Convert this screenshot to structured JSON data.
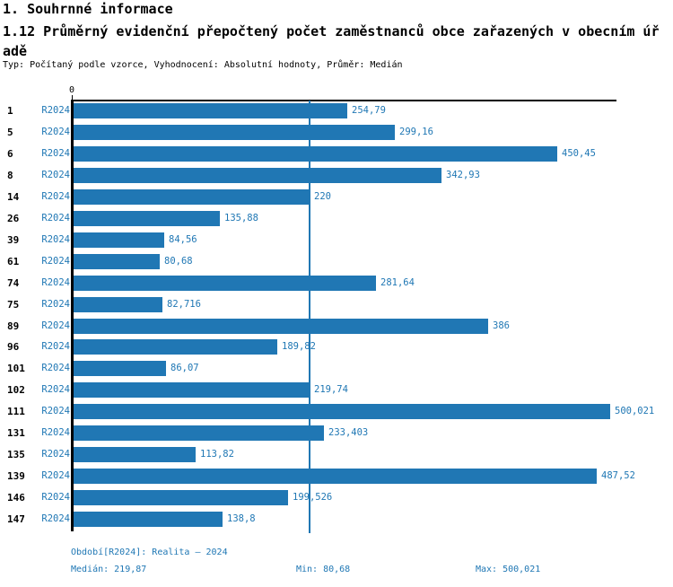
{
  "header": {
    "title": "1. Souhrnné informace",
    "subtitle": "1.12 Průměrný evidenční přepočtený počet zaměstnanců obce zařazených v obecním úřadě",
    "meta": "Typ: Počítaný podle vzorce, Vyhodnocení: Absolutní hodnoty, Průměr: Medián"
  },
  "chart_data": {
    "type": "bar",
    "orientation": "horizontal",
    "title": "1.12 Průměrný evidenční přepočtený počet zaměstnanců obce zařazených v obecním úřadě",
    "series_label": "R2024",
    "categories": [
      "1",
      "5",
      "6",
      "8",
      "14",
      "26",
      "39",
      "61",
      "74",
      "75",
      "89",
      "96",
      "101",
      "102",
      "111",
      "131",
      "135",
      "139",
      "146",
      "147"
    ],
    "values": [
      254.79,
      299.16,
      450.45,
      342.93,
      220,
      135.88,
      84.56,
      80.68,
      281.64,
      82.716,
      386,
      189.82,
      86.07,
      219.74,
      500.021,
      233.403,
      113.82,
      487.52,
      199.526,
      138.8
    ],
    "value_labels": [
      "254,79",
      "299,16",
      "450,45",
      "342,93",
      "220",
      "135,88",
      "84,56",
      "80,68",
      "281,64",
      "82,716",
      "386",
      "189,82",
      "86,07",
      "219,74",
      "500,021",
      "233,403",
      "113,82",
      "487,52",
      "199,526",
      "138,8"
    ],
    "axis_zero_label": "0",
    "xlim": [
      0,
      508
    ],
    "median_reference_line": 219.87,
    "bar_color": "#2077b4",
    "label_color": "#1f77b4",
    "axis_color": "#000000",
    "legend_position": "none",
    "grid": false
  },
  "footer": {
    "period": "Období[R2024]: Realita – 2024",
    "median": "Medián: 219,87",
    "min": "Min: 80,68",
    "max": "Max: 500,021"
  }
}
